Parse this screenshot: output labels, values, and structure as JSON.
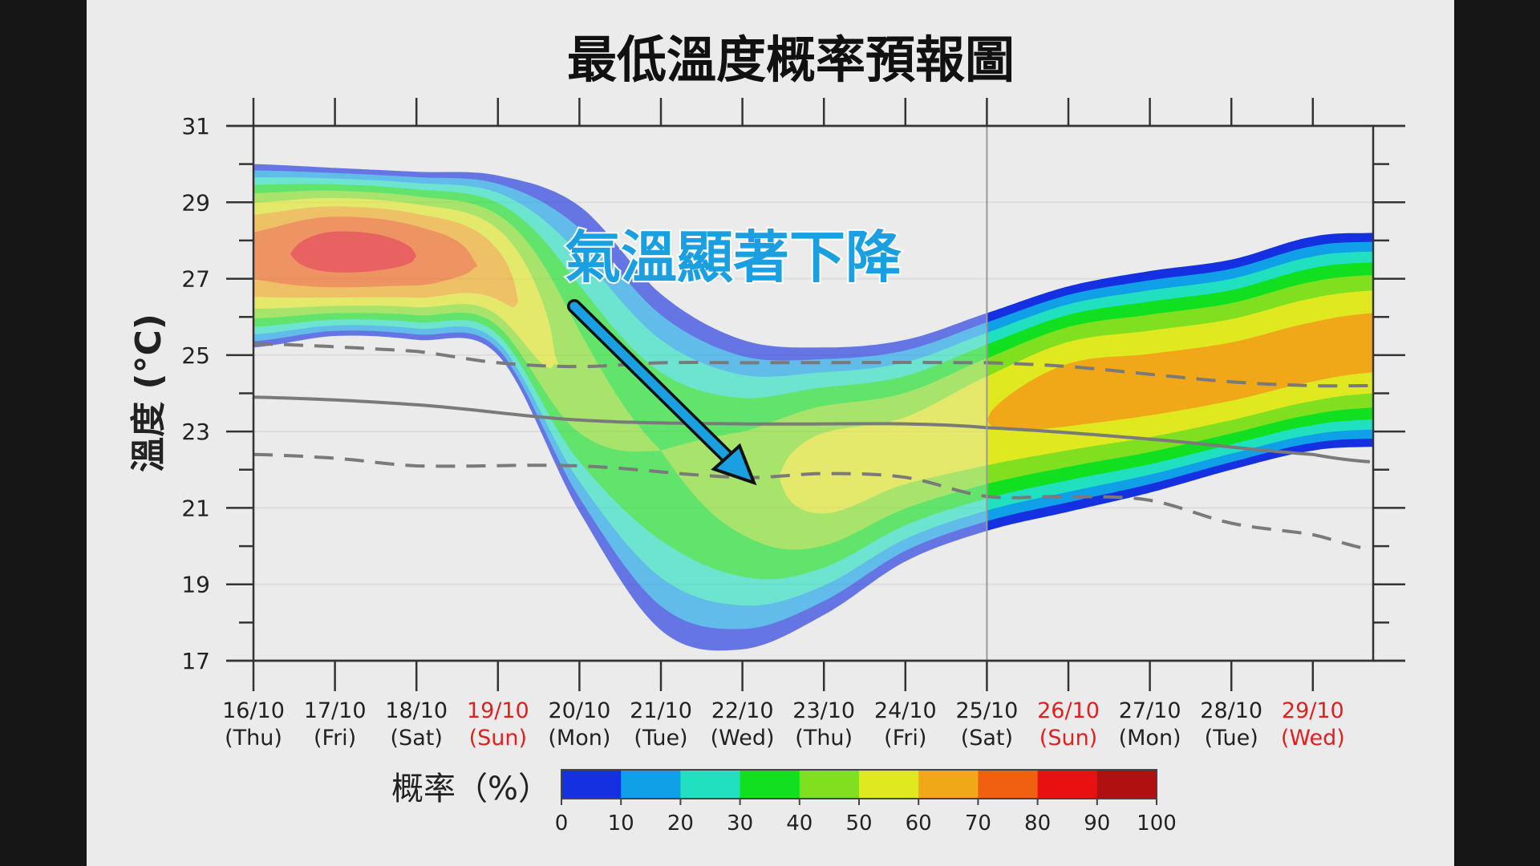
{
  "chart_data": {
    "type": "area",
    "title": "最低溫度概率預報圖",
    "ylabel": "溫度 (°C)",
    "ylim": [
      17,
      31
    ],
    "yticks": [
      "17",
      "19",
      "21",
      "23",
      "25",
      "27",
      "29",
      "31"
    ],
    "grid": true,
    "xcategories": [
      {
        "date": "16/10",
        "day": "(Thu)",
        "holiday": false
      },
      {
        "date": "17/10",
        "day": "(Fri)",
        "holiday": false
      },
      {
        "date": "18/10",
        "day": "(Sat)",
        "holiday": false
      },
      {
        "date": "19/10",
        "day": "(Sun)",
        "holiday": true
      },
      {
        "date": "20/10",
        "day": "(Mon)",
        "holiday": false
      },
      {
        "date": "21/10",
        "day": "(Tue)",
        "holiday": false
      },
      {
        "date": "22/10",
        "day": "(Wed)",
        "holiday": false
      },
      {
        "date": "23/10",
        "day": "(Thu)",
        "holiday": false
      },
      {
        "date": "24/10",
        "day": "(Fri)",
        "holiday": false
      },
      {
        "date": "25/10",
        "day": "(Sat)",
        "holiday": false
      },
      {
        "date": "26/10",
        "day": "(Sun)",
        "holiday": true
      },
      {
        "date": "27/10",
        "day": "(Mon)",
        "holiday": false
      },
      {
        "date": "28/10",
        "day": "(Tue)",
        "holiday": false
      },
      {
        "date": "29/10",
        "day": "(Wed)",
        "holiday": true
      }
    ],
    "holiday_color": "#e02020",
    "probability_field": {
      "day_index": [
        0,
        1,
        2,
        3,
        4,
        5,
        6,
        7,
        8,
        9,
        10,
        11,
        12,
        13,
        13.75
      ],
      "upper_envelope": [
        30.0,
        29.9,
        29.8,
        29.7,
        28.9,
        26.6,
        25.4,
        25.2,
        25.4,
        26.1,
        26.8,
        27.2,
        27.5,
        28.1,
        28.2
      ],
      "lower_envelope": [
        25.2,
        25.5,
        25.4,
        25.0,
        20.9,
        17.8,
        17.3,
        18.2,
        19.6,
        20.4,
        20.9,
        21.4,
        22.0,
        22.5,
        22.6
      ],
      "mode": [
        27.6,
        27.7,
        27.6,
        27.0,
        24.0,
        22.5,
        21.8,
        22.0,
        22.5,
        23.3,
        24.0,
        24.2,
        24.5,
        25.0,
        25.3
      ],
      "peak_probability": [
        75,
        85,
        80,
        65,
        45,
        40,
        45,
        55,
        55,
        60,
        65,
        65,
        65,
        65,
        65
      ]
    },
    "series": [
      {
        "style": "solid",
        "x": [
          0,
          2,
          4,
          6,
          8,
          9,
          11,
          13,
          13.75
        ],
        "values": [
          23.9,
          23.7,
          23.3,
          23.2,
          23.2,
          23.1,
          22.8,
          22.4,
          22.2
        ]
      },
      {
        "style": "dashed",
        "x": [
          0,
          2,
          3,
          4,
          5,
          6,
          9,
          10,
          11,
          12,
          13,
          13.75
        ],
        "values": [
          25.3,
          25.1,
          24.8,
          24.7,
          24.8,
          24.8,
          24.8,
          24.7,
          24.5,
          24.3,
          24.2,
          24.2
        ]
      },
      {
        "style": "dashed",
        "x": [
          0,
          1,
          2,
          4,
          6,
          7,
          8,
          9,
          10,
          11,
          12,
          13,
          13.75
        ],
        "values": [
          22.4,
          22.3,
          22.1,
          22.1,
          21.8,
          21.9,
          21.8,
          21.3,
          21.3,
          21.2,
          20.6,
          20.3,
          19.9
        ]
      }
    ],
    "divider_at_index": 9,
    "annotation": "氣溫顯著下降",
    "colorbar": {
      "label": "概率（%）",
      "ticks": [
        "0",
        "10",
        "20",
        "30",
        "40",
        "50",
        "60",
        "70",
        "80",
        "90",
        "100"
      ],
      "colors": [
        "#1430e0",
        "#10a0e8",
        "#20e0c0",
        "#10e020",
        "#80e020",
        "#e0e820",
        "#f0a818",
        "#f06010",
        "#e81010",
        "#b01010"
      ]
    }
  }
}
